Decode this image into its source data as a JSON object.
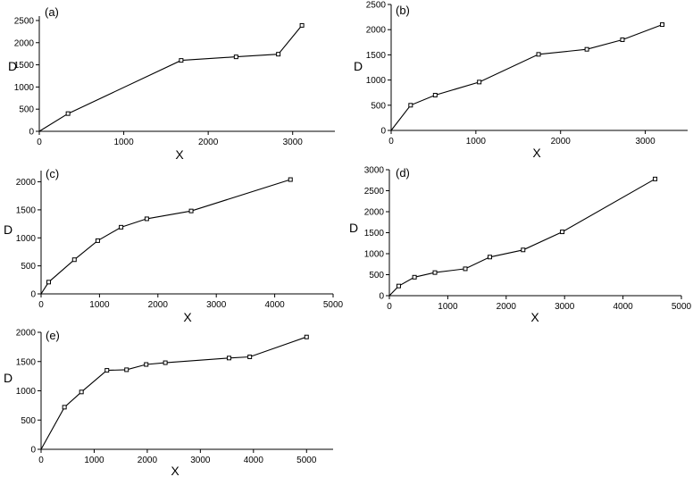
{
  "chart_data": [
    {
      "type": "line",
      "panel_label": "(a)",
      "xlabel": "X",
      "ylabel": "D",
      "xlim": [
        0,
        3500
      ],
      "ylim": [
        0,
        2600
      ],
      "x_ticks": [
        0,
        1000,
        2000,
        3000
      ],
      "y_ticks": [
        0,
        500,
        1000,
        1500,
        2000,
        2500
      ],
      "x": [
        0,
        340,
        1680,
        2330,
        2830,
        3110
      ],
      "y": [
        0,
        400,
        1600,
        1680,
        1740,
        2390
      ]
    },
    {
      "type": "line",
      "panel_label": "(b)",
      "xlabel": "X",
      "ylabel": "D",
      "xlim": [
        0,
        3500
      ],
      "ylim": [
        0,
        2500
      ],
      "x_ticks": [
        0,
        1000,
        2000,
        3000
      ],
      "y_ticks": [
        0,
        500,
        1000,
        1500,
        2000,
        2500
      ],
      "x": [
        0,
        230,
        520,
        1040,
        1740,
        2310,
        2730,
        3200
      ],
      "y": [
        0,
        500,
        700,
        960,
        1510,
        1610,
        1800,
        2100
      ]
    },
    {
      "type": "line",
      "panel_label": "(c)",
      "xlabel": "X",
      "ylabel": "D",
      "xlim": [
        0,
        5000
      ],
      "ylim": [
        0,
        2200
      ],
      "x_ticks": [
        0,
        1000,
        2000,
        3000,
        4000,
        5000
      ],
      "y_ticks": [
        0,
        500,
        1000,
        1500,
        2000
      ],
      "x": [
        0,
        130,
        570,
        970,
        1370,
        1810,
        2570,
        4270
      ],
      "y": [
        0,
        210,
        610,
        950,
        1190,
        1340,
        1480,
        2040
      ]
    },
    {
      "type": "line",
      "panel_label": "(d)",
      "xlabel": "X",
      "ylabel": "D",
      "xlim": [
        0,
        5000
      ],
      "ylim": [
        0,
        3000
      ],
      "x_ticks": [
        0,
        1000,
        2000,
        3000,
        4000,
        5000
      ],
      "y_ticks": [
        0,
        500,
        1000,
        1500,
        2000,
        2500,
        3000
      ],
      "x": [
        0,
        160,
        430,
        780,
        1300,
        1720,
        2290,
        2960,
        4550
      ],
      "y": [
        0,
        230,
        440,
        550,
        640,
        920,
        1090,
        1520,
        2780
      ]
    },
    {
      "type": "line",
      "panel_label": "(e)",
      "xlabel": "X",
      "ylabel": "D",
      "xlim": [
        0,
        5500
      ],
      "ylim": [
        0,
        2000
      ],
      "x_ticks": [
        0,
        1000,
        2000,
        3000,
        4000,
        5000
      ],
      "y_ticks": [
        0,
        500,
        1000,
        1500,
        2000
      ],
      "x": [
        0,
        440,
        760,
        1240,
        1610,
        1980,
        2340,
        3540,
        3930,
        5000
      ],
      "y": [
        0,
        720,
        980,
        1350,
        1360,
        1450,
        1480,
        1560,
        1580,
        1920
      ]
    }
  ]
}
